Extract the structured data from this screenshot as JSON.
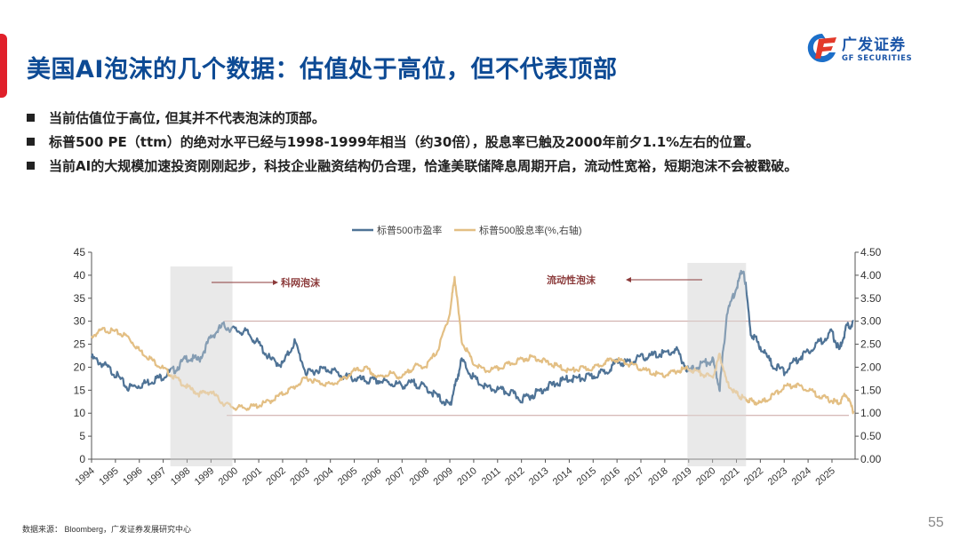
{
  "header": {
    "title": "美国AI泡沫的几个数据：估值处于高位，但不代表顶部",
    "logo_cn": "广发证券",
    "logo_en": "GF SECURITIES"
  },
  "bullets": [
    "当前估值位于高位, 但其并不代表泡沫的顶部。",
    "标普500 PE（ttm）的绝对水平已经与1998-1999年相当（约30倍），股息率已触及2000年前夕1.1%左右的位置。",
    "当前AI的大规模加速投资刚刚起步，科技企业融资结构仍合理，恰逢美联储降息周期开启，流动性宽裕，短期泡沫不会被戳破。"
  ],
  "footer": {
    "source": "数据来源： Bloomberg，广发证券发展研究中心",
    "page_number": "55"
  },
  "colors": {
    "title": "#0d4a94",
    "accent": "#e0202a",
    "pe_series": "#4f7396",
    "dividend_series": "#e3bf84",
    "annotation": "#8b3a3a",
    "shade": "#e8e8e8"
  },
  "chart_data": {
    "type": "line",
    "title": "",
    "legend": [
      "标普500市盈率",
      "标普500股息率(%,右轴)"
    ],
    "legend_position": "top",
    "x_ticks": [
      "1994",
      "1995",
      "1996",
      "1997",
      "1998",
      "1999",
      "2000",
      "2001",
      "2002",
      "2003",
      "2004",
      "2005",
      "2006",
      "2007",
      "2008",
      "2009",
      "2010",
      "2011",
      "2012",
      "2013",
      "2014",
      "2015",
      "2016",
      "2017",
      "2018",
      "2019",
      "2020",
      "2021",
      "2022",
      "2023",
      "2024",
      "2025"
    ],
    "y_left": {
      "ticks": [
        "0",
        "5",
        "10",
        "15",
        "20",
        "25",
        "30",
        "35",
        "40",
        "45"
      ],
      "range": [
        0,
        45
      ]
    },
    "y_right": {
      "ticks": [
        "0.00",
        "0.50",
        "1.00",
        "1.50",
        "2.00",
        "2.50",
        "3.00",
        "3.50",
        "4.00",
        "4.50"
      ],
      "range": [
        0,
        4.5
      ]
    },
    "annotations": [
      {
        "text": "科网泡沫",
        "shade_x_range": [
          1997.3,
          1999.9
        ]
      },
      {
        "text": "流动性泡沫",
        "shade_x_range": [
          2018.95,
          2021.4
        ]
      }
    ],
    "reference_lines": [
      {
        "axis": "left",
        "value": 30
      },
      {
        "axis": "right",
        "value": 0.95
      }
    ],
    "series": [
      {
        "name": "标普500市盈率",
        "axis": "left",
        "x": [
          1994.0,
          1994.5,
          1995.0,
          1995.5,
          1996.0,
          1996.5,
          1997.0,
          1997.5,
          1998.0,
          1998.5,
          1999.0,
          1999.5,
          2000.0,
          2000.5,
          2001.0,
          2001.5,
          2002.0,
          2002.5,
          2003.0,
          2003.5,
          2004.0,
          2004.5,
          2005.0,
          2005.5,
          2006.0,
          2006.5,
          2007.0,
          2007.5,
          2008.0,
          2008.5,
          2009.0,
          2009.2,
          2009.5,
          2010.0,
          2010.5,
          2011.0,
          2011.5,
          2012.0,
          2012.5,
          2013.0,
          2013.5,
          2014.0,
          2014.5,
          2015.0,
          2015.5,
          2016.0,
          2016.5,
          2017.0,
          2017.5,
          2018.0,
          2018.5,
          2019.0,
          2019.5,
          2020.0,
          2020.3,
          2020.6,
          2021.0,
          2021.3,
          2021.6,
          2022.0,
          2022.5,
          2023.0,
          2023.5,
          2024.0,
          2024.5,
          2025.0,
          2025.3,
          2025.6,
          2025.9
        ],
        "values": [
          22.5,
          21.0,
          19.0,
          16.0,
          16.5,
          17.5,
          18.5,
          20.0,
          22.5,
          22.0,
          27.0,
          29.5,
          28.5,
          28.0,
          25.5,
          22.0,
          21.0,
          26.0,
          19.0,
          20.0,
          20.0,
          18.5,
          18.0,
          17.5,
          17.5,
          17.0,
          16.5,
          17.0,
          16.0,
          14.0,
          12.0,
          16.0,
          22.0,
          18.0,
          16.0,
          15.5,
          15.0,
          13.5,
          14.5,
          16.0,
          17.0,
          18.0,
          18.0,
          18.5,
          19.5,
          21.5,
          21.5,
          22.5,
          23.0,
          23.5,
          24.0,
          19.5,
          21.0,
          22.0,
          16.0,
          32.0,
          38.0,
          42.0,
          28.0,
          25.0,
          21.0,
          19.5,
          22.0,
          24.0,
          26.0,
          28.0,
          24.0,
          29.0,
          30.0
        ]
      },
      {
        "name": "标普500股息率(%,右轴)",
        "axis": "right",
        "x": [
          1994.0,
          1994.5,
          1995.0,
          1995.5,
          1996.0,
          1996.5,
          1997.0,
          1997.5,
          1998.0,
          1998.5,
          1999.0,
          1999.5,
          2000.0,
          2000.5,
          2001.0,
          2001.5,
          2002.0,
          2002.5,
          2003.0,
          2003.5,
          2004.0,
          2004.5,
          2005.0,
          2005.5,
          2006.0,
          2006.5,
          2007.0,
          2007.5,
          2008.0,
          2008.5,
          2009.0,
          2009.2,
          2009.5,
          2010.0,
          2010.5,
          2011.0,
          2011.5,
          2012.0,
          2012.5,
          2013.0,
          2013.5,
          2014.0,
          2014.5,
          2015.0,
          2015.5,
          2016.0,
          2016.5,
          2017.0,
          2017.5,
          2018.0,
          2018.5,
          2019.0,
          2019.5,
          2020.0,
          2020.3,
          2020.6,
          2021.0,
          2021.3,
          2021.6,
          2022.0,
          2022.5,
          2023.0,
          2023.5,
          2024.0,
          2024.5,
          2025.0,
          2025.3,
          2025.6,
          2025.9
        ],
        "values": [
          2.7,
          2.85,
          2.8,
          2.7,
          2.4,
          2.2,
          2.0,
          1.8,
          1.6,
          1.45,
          1.5,
          1.25,
          1.15,
          1.15,
          1.2,
          1.3,
          1.45,
          1.6,
          1.8,
          1.7,
          1.65,
          1.75,
          1.95,
          2.0,
          1.8,
          1.9,
          1.8,
          2.05,
          2.05,
          2.4,
          3.2,
          4.0,
          2.6,
          2.1,
          1.95,
          2.0,
          2.1,
          2.2,
          2.25,
          2.15,
          2.05,
          1.95,
          2.0,
          2.0,
          2.15,
          2.2,
          2.1,
          2.0,
          1.9,
          1.85,
          1.95,
          2.0,
          1.9,
          1.8,
          2.3,
          1.7,
          1.45,
          1.35,
          1.3,
          1.25,
          1.4,
          1.6,
          1.65,
          1.55,
          1.4,
          1.3,
          1.25,
          1.45,
          1.05
        ]
      }
    ]
  }
}
